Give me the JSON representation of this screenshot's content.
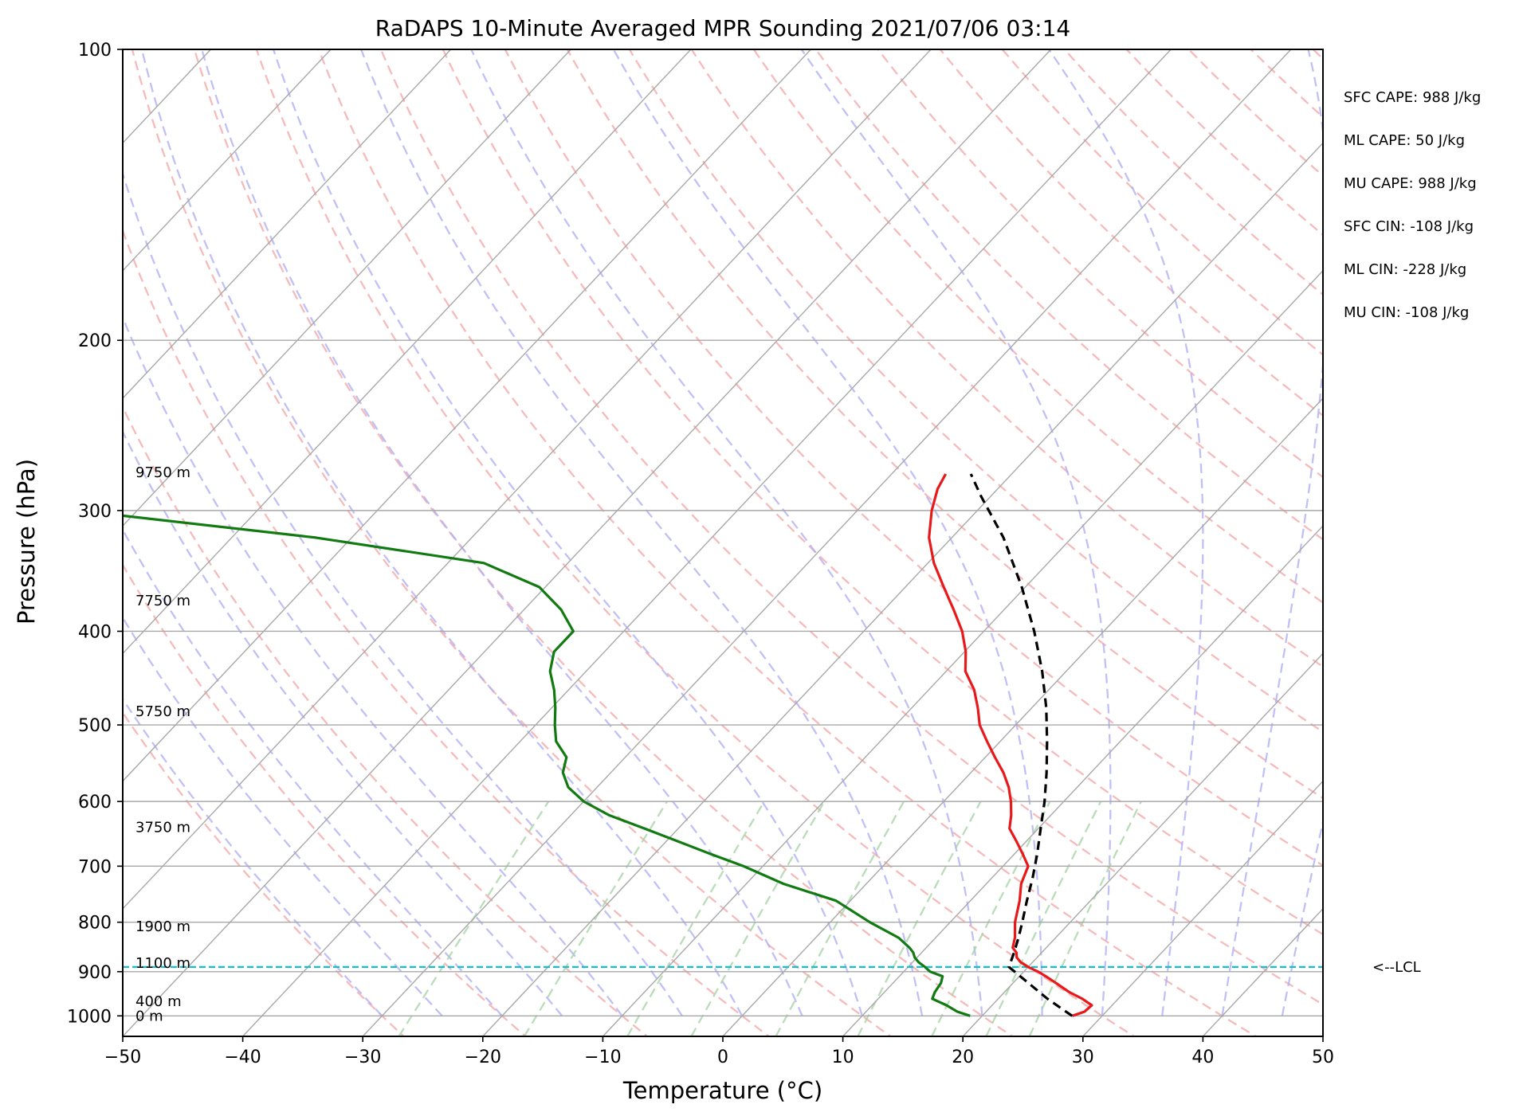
{
  "chart_data": {
    "type": "line",
    "title": "RaDAPS 10-Minute Averaged MPR Sounding 2021/07/06 03:14",
    "xlabel": "Temperature (°C)",
    "ylabel": "Pressure (hPa)",
    "xlim": [
      -50,
      50
    ],
    "ylim": [
      1050,
      100
    ],
    "y_scale": "log",
    "x_ticks": [
      -50,
      -40,
      -30,
      -20,
      -10,
      0,
      10,
      20,
      30,
      40,
      50
    ],
    "x_tick_labels": [
      "−50",
      "−40",
      "−30",
      "−20",
      "−10",
      "0",
      "10",
      "20",
      "30",
      "40",
      "50"
    ],
    "y_ticks": [
      100,
      200,
      300,
      400,
      500,
      600,
      700,
      800,
      900,
      1000
    ],
    "y_tick_labels": [
      "100",
      "200",
      "300",
      "400",
      "500",
      "600",
      "700",
      "800",
      "900",
      "1000"
    ],
    "grid": true,
    "skew": "skew-T log-p",
    "height_labels": [
      {
        "text": "9750 m",
        "p": 274
      },
      {
        "text": "7750 m",
        "p": 372
      },
      {
        "text": "5750 m",
        "p": 484
      },
      {
        "text": "3750 m",
        "p": 638
      },
      {
        "text": "1900 m",
        "p": 808
      },
      {
        "text": "1100 m",
        "p": 882
      },
      {
        "text": "400 m",
        "p": 966
      },
      {
        "text": "0 m",
        "p": 1000
      }
    ],
    "lcl": {
      "label": "<--LCL",
      "p": 890,
      "color": "#17becf"
    },
    "stats": [
      "SFC CAPE: 988 J/kg",
      "ML CAPE: 50 J/kg",
      "MU CAPE: 988 J/kg",
      "SFC CIN: -108 J/kg",
      "ML CIN: -228 J/kg",
      "MU CIN: -108 J/kg"
    ],
    "series": [
      {
        "color": "#e8191a",
        "p": [
          1000,
          990,
          975,
          960,
          945,
          925,
          910,
          900,
          890,
          880,
          870,
          860,
          850,
          830,
          800,
          760,
          730,
          700,
          680,
          660,
          640,
          620,
          600,
          580,
          560,
          540,
          520,
          500,
          480,
          460,
          440,
          420,
          400,
          380,
          360,
          340,
          320,
          300,
          285,
          275
        ],
        "temp": [
          27.5,
          28.2,
          28.3,
          27.0,
          25.4,
          23.6,
          22.2,
          21.2,
          20.0,
          19.0,
          18.3,
          17.9,
          17.2,
          16.6,
          15.4,
          14.1,
          12.9,
          12.1,
          10.7,
          9.2,
          7.6,
          6.7,
          5.6,
          4.3,
          2.7,
          0.8,
          -1.1,
          -3.0,
          -4.5,
          -6.2,
          -8.4,
          -9.9,
          -11.8,
          -14.2,
          -16.8,
          -19.5,
          -21.9,
          -23.8,
          -25.0,
          -25.5
        ]
      },
      {
        "color": "#117a11",
        "p": [
          1000,
          990,
          975,
          960,
          945,
          925,
          910,
          900,
          890,
          880,
          870,
          860,
          850,
          830,
          800,
          760,
          730,
          700,
          680,
          660,
          640,
          620,
          600,
          580,
          560,
          540,
          520,
          500,
          480,
          460,
          440,
          420,
          400,
          380,
          360,
          340,
          320,
          300,
          285
        ],
        "dewpoint": [
          19.0,
          17.6,
          16.2,
          14.5,
          14.2,
          14.0,
          13.6,
          12.2,
          11.4,
          10.5,
          9.8,
          9.3,
          8.6,
          6.9,
          3.3,
          -1.2,
          -6.9,
          -11.6,
          -15.3,
          -19.0,
          -22.8,
          -26.8,
          -30.0,
          -32.4,
          -34.0,
          -34.9,
          -37.0,
          -38.4,
          -39.7,
          -41.2,
          -43.0,
          -44.2,
          -44.2,
          -46.9,
          -50.5,
          -57.0,
          -73.0,
          -95.0,
          -110.0
        ]
      },
      {
        "color": "#000000",
        "dashed": true,
        "p": [
          1000,
          960,
          920,
          890,
          860,
          830,
          800,
          760,
          720,
          680,
          640,
          600,
          560,
          520,
          480,
          440,
          400,
          360,
          320,
          290,
          275
        ],
        "temp": [
          27.5,
          24.1,
          20.9,
          18.4,
          17.7,
          16.9,
          16.0,
          14.7,
          13.4,
          11.9,
          10.2,
          8.4,
          6.3,
          3.9,
          1.2,
          -2.0,
          -5.8,
          -10.3,
          -15.7,
          -20.8,
          -23.4
        ]
      }
    ]
  }
}
